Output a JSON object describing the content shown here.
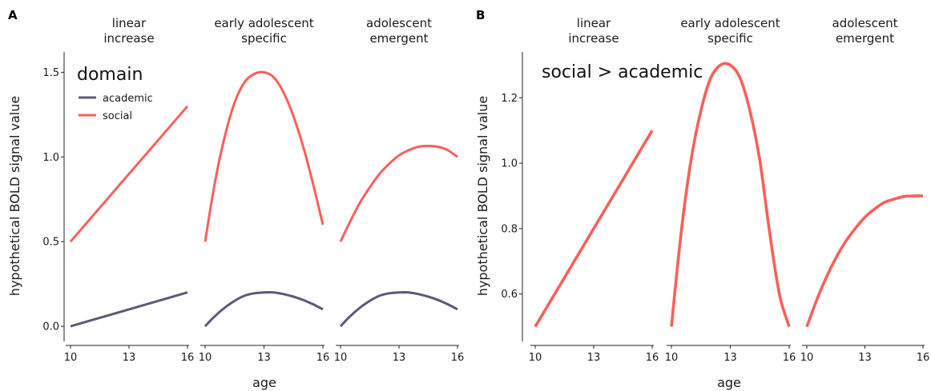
{
  "chart_data": [
    {
      "panel": "A",
      "type": "line",
      "xlabel": "age",
      "ylabel": "hypothetical BOLD signal value",
      "xlim": [
        10,
        16
      ],
      "ylim": [
        -0.08,
        1.62
      ],
      "xticks": [
        10,
        13,
        16
      ],
      "yticks": [
        0.0,
        0.5,
        1.0,
        1.5
      ],
      "ytick_labels": [
        "0.0",
        "0.5",
        "1.0",
        "1.5"
      ],
      "grid": false,
      "legend": {
        "title": "domain",
        "position": "top-left",
        "entries": [
          "academic",
          "social"
        ]
      },
      "facets": [
        {
          "label": [
            "linear",
            "increase"
          ],
          "series": [
            {
              "name": "academic",
              "color": "#5c5a78",
              "x": [
                10,
                16
              ],
              "y": [
                0.0,
                0.2
              ]
            },
            {
              "name": "social",
              "color": "#f8605a",
              "x": [
                10,
                16
              ],
              "y": [
                0.5,
                1.3
              ]
            }
          ]
        },
        {
          "label": [
            "early adolescent",
            "specific"
          ],
          "series": [
            {
              "name": "academic",
              "color": "#5c5a78",
              "x": [
                10,
                10.5,
                11,
                11.5,
                12,
                12.5,
                13,
                13.5,
                14,
                14.5,
                15,
                15.5,
                16
              ],
              "y": [
                0.0,
                0.06,
                0.11,
                0.15,
                0.18,
                0.195,
                0.2,
                0.2,
                0.19,
                0.175,
                0.155,
                0.13,
                0.1
              ]
            },
            {
              "name": "social",
              "color": "#f8605a",
              "x": [
                10,
                10.5,
                11,
                11.5,
                12,
                12.5,
                13,
                13.5,
                14,
                14.5,
                15,
                15.5,
                16
              ],
              "y": [
                0.5,
                0.85,
                1.12,
                1.32,
                1.44,
                1.49,
                1.5,
                1.47,
                1.38,
                1.24,
                1.06,
                0.84,
                0.6
              ]
            }
          ]
        },
        {
          "label": [
            "adolescent",
            "emergent"
          ],
          "series": [
            {
              "name": "academic",
              "color": "#5c5a78",
              "x": [
                10,
                10.5,
                11,
                11.5,
                12,
                12.5,
                13,
                13.5,
                14,
                14.5,
                15,
                15.5,
                16
              ],
              "y": [
                0.0,
                0.06,
                0.11,
                0.15,
                0.18,
                0.195,
                0.2,
                0.2,
                0.19,
                0.175,
                0.155,
                0.13,
                0.1
              ]
            },
            {
              "name": "social",
              "color": "#f8605a",
              "x": [
                10,
                10.5,
                11,
                11.5,
                12,
                12.5,
                13,
                13.5,
                14,
                14.5,
                15,
                15.5,
                16
              ],
              "y": [
                0.5,
                0.62,
                0.73,
                0.82,
                0.9,
                0.96,
                1.01,
                1.04,
                1.06,
                1.065,
                1.06,
                1.04,
                1.0
              ]
            }
          ]
        }
      ]
    },
    {
      "panel": "B",
      "type": "line",
      "xlabel": "age",
      "ylabel": "hypothetical BOLD signal value",
      "xlim": [
        10,
        16
      ],
      "ylim": [
        0.46,
        1.34
      ],
      "xticks": [
        10,
        13,
        16
      ],
      "yticks": [
        0.6,
        0.8,
        1.0,
        1.2
      ],
      "ytick_labels": [
        "0.6",
        "0.8",
        "1.0",
        "1.2"
      ],
      "grid": false,
      "annotation": "social > academic",
      "facets": [
        {
          "label": [
            "linear",
            "increase"
          ],
          "series": [
            {
              "name": "social > academic",
              "color": "#f8605a",
              "x": [
                10,
                16
              ],
              "y": [
                0.5,
                1.1
              ]
            }
          ]
        },
        {
          "label": [
            "early adolescent",
            "specific"
          ],
          "series": [
            {
              "name": "social > academic",
              "color": "#f8605a",
              "x": [
                10,
                10.5,
                11,
                11.5,
                12,
                12.5,
                13,
                13.5,
                14,
                14.5,
                15,
                15.5,
                16
              ],
              "y": [
                0.5,
                0.79,
                1.01,
                1.16,
                1.26,
                1.3,
                1.3,
                1.26,
                1.16,
                1.01,
                0.79,
                0.6,
                0.5
              ]
            }
          ]
        },
        {
          "label": [
            "adolescent",
            "emergent"
          ],
          "series": [
            {
              "name": "social > academic",
              "color": "#f8605a",
              "x": [
                10,
                10.5,
                11,
                11.5,
                12,
                12.5,
                13,
                13.5,
                14,
                14.5,
                15,
                15.5,
                16
              ],
              "y": [
                0.5,
                0.58,
                0.65,
                0.71,
                0.76,
                0.8,
                0.835,
                0.86,
                0.88,
                0.89,
                0.898,
                0.9,
                0.9
              ]
            }
          ]
        }
      ]
    }
  ]
}
